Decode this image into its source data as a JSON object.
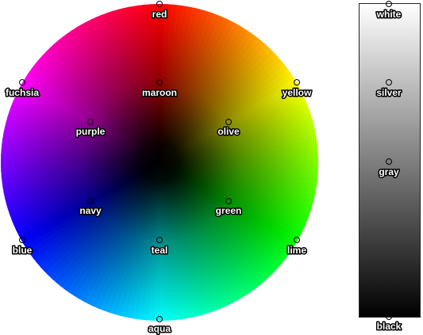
{
  "color_wheel": {
    "points": [
      {
        "name": "red",
        "hex": "#ff0000"
      },
      {
        "name": "yellow",
        "hex": "#ffff00"
      },
      {
        "name": "lime",
        "hex": "#00ff00"
      },
      {
        "name": "aqua",
        "hex": "#00ffff"
      },
      {
        "name": "blue",
        "hex": "#0000ff"
      },
      {
        "name": "fuchsia",
        "hex": "#ff00ff"
      },
      {
        "name": "maroon",
        "hex": "#800000"
      },
      {
        "name": "olive",
        "hex": "#808000"
      },
      {
        "name": "green",
        "hex": "#008000"
      },
      {
        "name": "teal",
        "hex": "#008080"
      },
      {
        "name": "navy",
        "hex": "#000080"
      },
      {
        "name": "purple",
        "hex": "#800080"
      }
    ]
  },
  "grayscale_bar": {
    "points": [
      {
        "name": "white",
        "hex": "#ffffff"
      },
      {
        "name": "silver",
        "hex": "#c0c0c0"
      },
      {
        "name": "gray",
        "hex": "#808080"
      },
      {
        "name": "black",
        "hex": "#000000"
      }
    ]
  }
}
